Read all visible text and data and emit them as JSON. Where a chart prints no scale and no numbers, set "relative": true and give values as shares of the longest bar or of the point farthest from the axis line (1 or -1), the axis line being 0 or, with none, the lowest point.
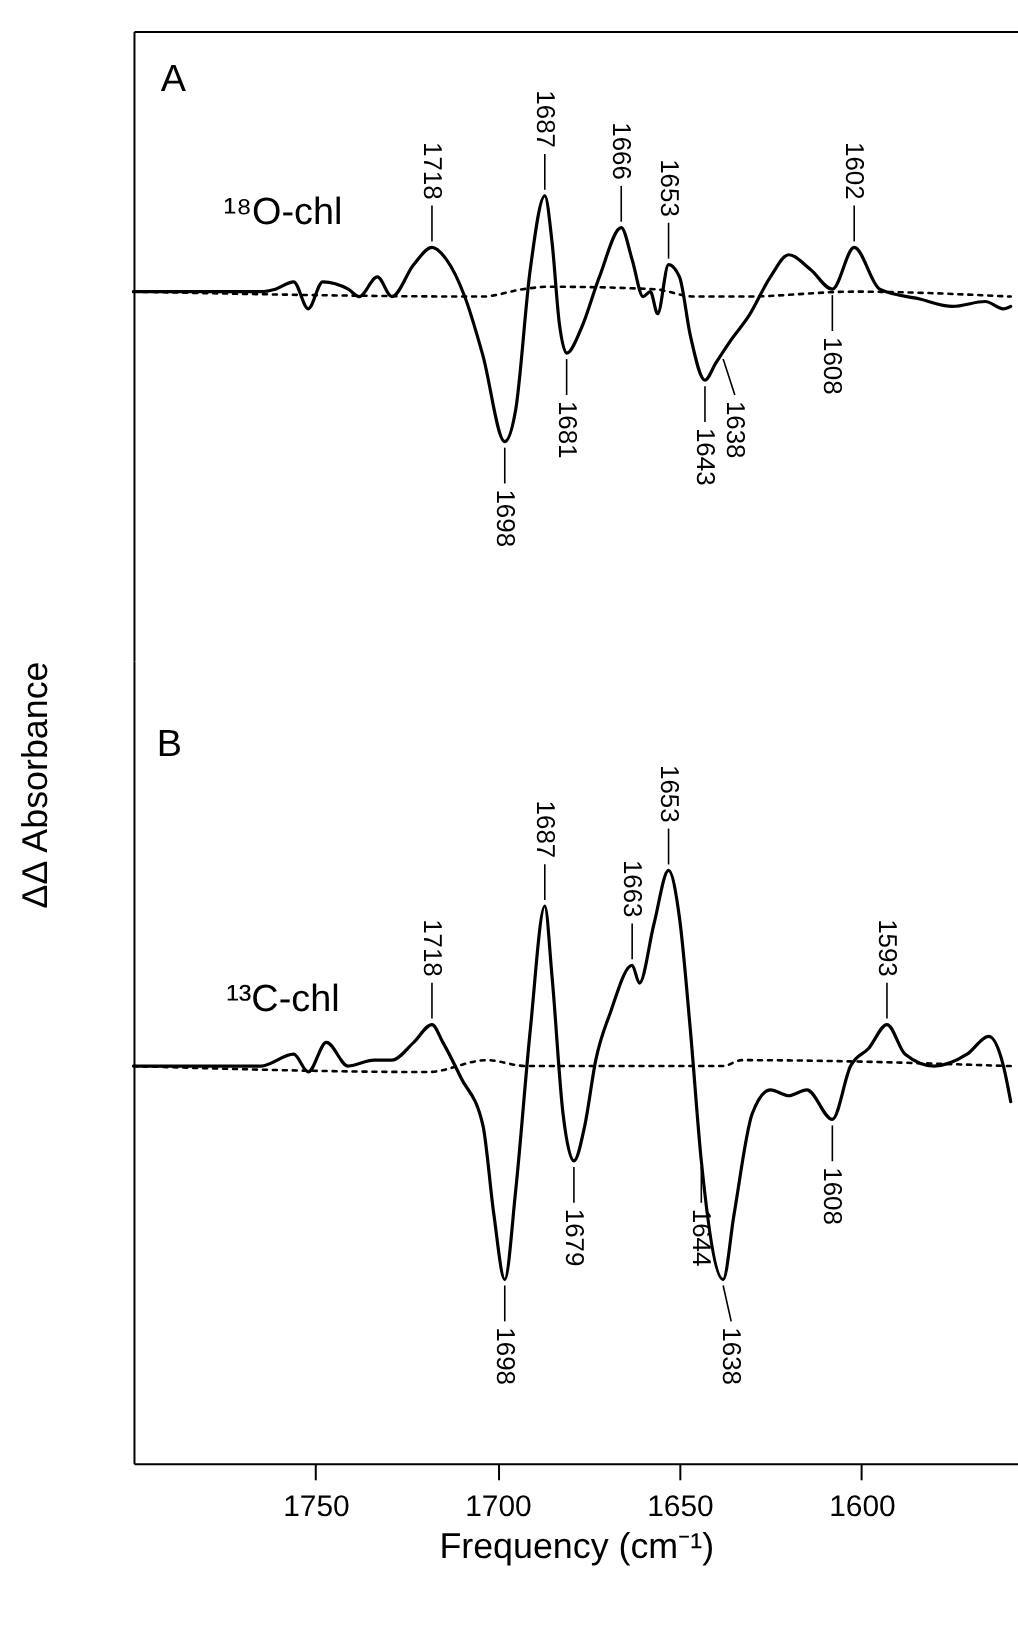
{
  "chart_data": [
    {
      "type": "line",
      "relative": true,
      "xlim": [
        1800,
        1557
      ],
      "tick_labels": false,
      "series": [
        {
          "color": "#000000",
          "line_style": "solid",
          "x": [
            1800,
            1765,
            1761,
            1756,
            1752,
            1748,
            1741,
            1738,
            1733,
            1729,
            1723,
            1718,
            1714,
            1709,
            1704,
            1698,
            1695,
            1691,
            1687,
            1685,
            1683,
            1681,
            1677,
            1672,
            1666,
            1663,
            1660,
            1658,
            1656,
            1653,
            1650,
            1647,
            1643,
            1640,
            1636,
            1631,
            1625,
            1620,
            1614,
            1608,
            1602,
            1595,
            1584,
            1575,
            1566,
            1561,
            1559
          ],
          "values": [
            0.61,
            0.61,
            0.62,
            0.65,
            0.54,
            0.65,
            0.62,
            0.59,
            0.67,
            0.59,
            0.72,
            0.79,
            0.74,
            0.59,
            0.35,
            0,
            0.13,
            0.7,
            1,
            0.81,
            0.48,
            0.36,
            0.46,
            0.67,
            0.87,
            0.74,
            0.59,
            0.61,
            0.52,
            0.72,
            0.67,
            0.43,
            0.25,
            0.32,
            0.41,
            0.51,
            0.67,
            0.76,
            0.7,
            0.62,
            0.79,
            0.62,
            0.58,
            0.55,
            0.57,
            0.54,
            0.55
          ]
        },
        {
          "color": "#000000",
          "line_style": "dotted",
          "x": [
            1800,
            1704,
            1693,
            1686,
            1657,
            1646,
            1632,
            1602,
            1559
          ],
          "values": [
            0.61,
            0.59,
            0.62,
            0.63,
            0.62,
            0.59,
            0.59,
            0.61,
            0.59
          ]
        }
      ],
      "annotations": [
        "A",
        "¹⁸O-chl",
        {
          "text": "1718",
          "x": 1718,
          "y": 0.79
        },
        {
          "text": "1687",
          "x": 1687,
          "y": 1
        },
        {
          "text": "1666",
          "x": 1666,
          "y": 0.87
        },
        {
          "text": "1653",
          "x": 1653,
          "y": 0.72
        },
        {
          "text": "1602",
          "x": 1602,
          "y": 0.79
        },
        {
          "text": "1698",
          "x": 1698,
          "y": 0
        },
        {
          "text": "1681",
          "x": 1681,
          "y": 0.36
        },
        {
          "text": "1643",
          "x": 1643,
          "y": 0.25
        },
        {
          "text": "1638",
          "x": 1638,
          "y": 0.36
        },
        {
          "text": "1608",
          "x": 1608,
          "y": 0.62
        }
      ]
    },
    {
      "type": "line",
      "relative": true,
      "xlim": [
        1800,
        1557
      ],
      "xticks": [
        1750,
        1700,
        1650,
        1600
      ],
      "tick_labels": "x",
      "xlabel": "Frequency (cm⁻¹)",
      "ylabel": "ΔΔ Absorbance",
      "series": [
        {
          "color": "#000000",
          "line_style": "solid",
          "x": [
            1800,
            1765,
            1756,
            1752,
            1747,
            1741,
            1734,
            1729,
            1723,
            1718,
            1715,
            1710,
            1704,
            1701,
            1698,
            1695,
            1691,
            1687,
            1685,
            1682,
            1679,
            1676,
            1673,
            1669,
            1663,
            1661,
            1657,
            1653,
            1650,
            1647,
            1644,
            1638,
            1635,
            1630,
            1625,
            1620,
            1615,
            1608,
            1603,
            1598,
            1593,
            1588,
            1580,
            1571,
            1565,
            1561,
            1559
          ],
          "values": [
            0.67,
            0.67,
            0.69,
            0.66,
            0.71,
            0.67,
            0.68,
            0.68,
            0.71,
            0.74,
            0.71,
            0.65,
            0.57,
            0.42,
            0.31,
            0.46,
            0.73,
            0.94,
            0.82,
            0.59,
            0.51,
            0.57,
            0.68,
            0.76,
            0.84,
            0.81,
            0.91,
            1,
            0.92,
            0.73,
            0.51,
            0.31,
            0.42,
            0.59,
            0.63,
            0.62,
            0.63,
            0.58,
            0.67,
            0.7,
            0.74,
            0.69,
            0.67,
            0.69,
            0.72,
            0.67,
            0.61
          ]
        },
        {
          "color": "#000000",
          "line_style": "dotted",
          "x": [
            1800,
            1719,
            1703,
            1692,
            1678,
            1638,
            1633,
            1559
          ],
          "values": [
            0.67,
            0.66,
            0.68,
            0.67,
            0.67,
            0.67,
            0.68,
            0.67
          ]
        }
      ],
      "annotations": [
        "B",
        "¹³C-chl",
        {
          "text": "1718",
          "x": 1718,
          "y": 0.74
        },
        {
          "text": "1687",
          "x": 1687,
          "y": 0.94
        },
        {
          "text": "1663",
          "x": 1663,
          "y": 0.84
        },
        {
          "text": "1653",
          "x": 1653,
          "y": 1
        },
        {
          "text": "1593",
          "x": 1593,
          "y": 0.74
        },
        {
          "text": "1698",
          "x": 1698,
          "y": 0.31
        },
        {
          "text": "1679",
          "x": 1679,
          "y": 0.51
        },
        {
          "text": "1644",
          "x": 1644,
          "y": 0.51
        },
        {
          "text": "1638",
          "x": 1638,
          "y": 0.31
        },
        {
          "text": "1608",
          "x": 1608,
          "y": 0.58
        }
      ]
    }
  ]
}
